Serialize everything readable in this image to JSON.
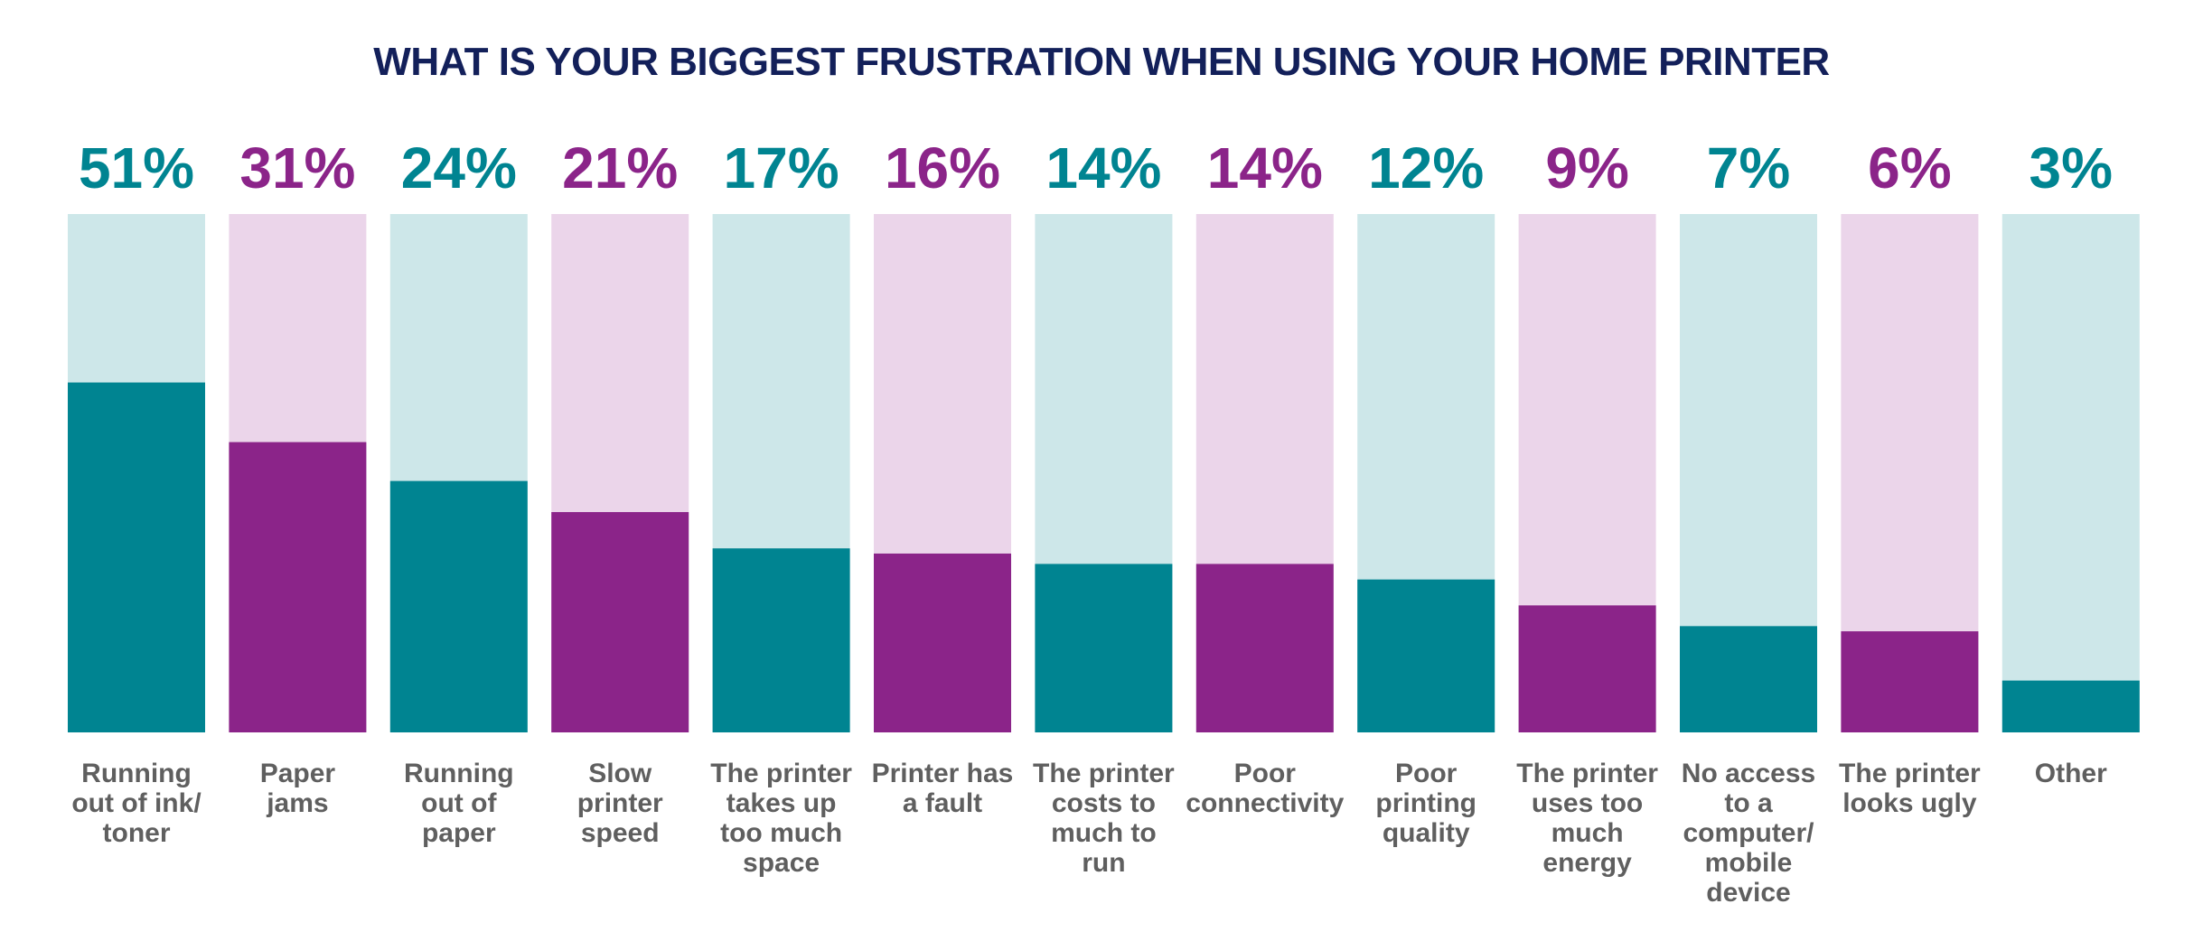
{
  "colors": {
    "title": "#13205a",
    "teal": "#008491",
    "teal_light": "#cde7e9",
    "purple": "#8b2489",
    "purple_light": "#ebd5ea",
    "category_text": "#5f5f5f"
  },
  "chart_data": {
    "type": "bar",
    "title": "WHAT IS YOUR BIGGEST FRUSTRATION WHEN USING YOUR HOME PRINTER",
    "xlabel": "",
    "ylabel": "",
    "ylim": [
      0,
      75
    ],
    "grid": false,
    "legend": "none",
    "categories": [
      "Running out of ink/ toner",
      "Paper jams",
      "Running out of paper",
      "Slow printer speed",
      "The printer takes up too much space",
      "Printer has a fault",
      "The printer costs to much to run",
      "Poor connectivity",
      "Poor printing quality",
      "The printer uses too much energy",
      "No access to a computer/ mobile device",
      "The printer looks ugly",
      "Other"
    ],
    "category_lines": [
      [
        "Running",
        "out of ink/",
        "toner"
      ],
      [
        "Paper",
        "jams"
      ],
      [
        "Running",
        "out of",
        "paper"
      ],
      [
        "Slow",
        "printer",
        "speed"
      ],
      [
        "The printer",
        "takes up",
        "too much",
        "space"
      ],
      [
        "Printer has",
        "a fault"
      ],
      [
        "The printer",
        "costs to",
        "much to",
        "run"
      ],
      [
        "Poor",
        "connectivity"
      ],
      [
        "Poor",
        "printing",
        "quality"
      ],
      [
        "The printer",
        "uses too",
        "much",
        "energy"
      ],
      [
        "No access",
        "to a",
        "computer/",
        "mobile",
        "device"
      ],
      [
        "The printer",
        "looks ugly"
      ],
      [
        "Other"
      ]
    ],
    "values": [
      51,
      31,
      24,
      21,
      17,
      16,
      14,
      14,
      12,
      9,
      7,
      6,
      3
    ],
    "value_labels": [
      "51%",
      "31%",
      "24%",
      "21%",
      "17%",
      "16%",
      "14%",
      "14%",
      "12%",
      "9%",
      "7%",
      "6%",
      "3%"
    ],
    "bar_heights_pct_of_column": [
      67.5,
      56,
      48.5,
      42.5,
      35.5,
      34.5,
      32.5,
      32.5,
      29.5,
      24.5,
      20.5,
      19.5,
      10
    ],
    "color_cycle": [
      "teal",
      "purple"
    ]
  }
}
